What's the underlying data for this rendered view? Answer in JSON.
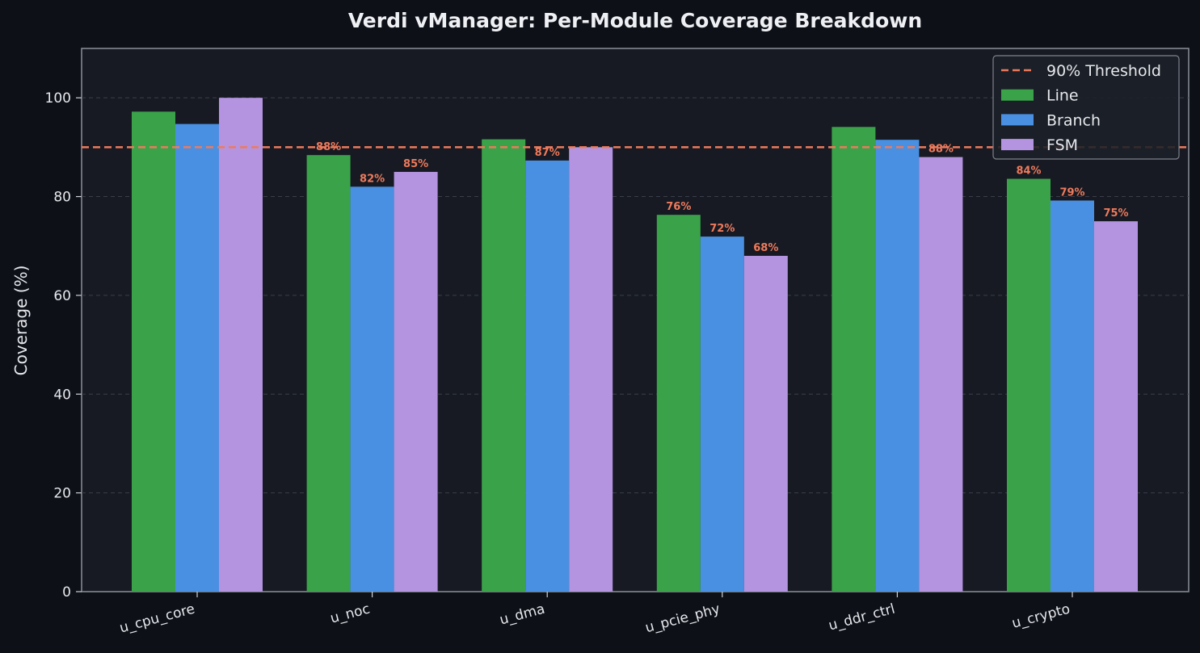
{
  "chart_data": {
    "type": "bar",
    "title": "Verdi vManager: Per-Module Coverage Breakdown",
    "xlabel": "",
    "ylabel": "Coverage (%)",
    "ylim": [
      0,
      110
    ],
    "yticks": [
      0,
      20,
      40,
      60,
      80,
      100
    ],
    "ytick_labels": [
      "0",
      "20",
      "40",
      "60",
      "80",
      "100"
    ],
    "grid": "horizontal, dashed",
    "legend_position": "top-right",
    "categories": [
      "u_cpu_core",
      "u_noc",
      "u_dma",
      "u_pcie_phy",
      "u_ddr_ctrl",
      "u_crypto"
    ],
    "series": [
      {
        "name": "Line",
        "color": "#3aa34a",
        "values": [
          97.2,
          88.4,
          91.6,
          76.3,
          94.1,
          83.6
        ]
      },
      {
        "name": "Branch",
        "color": "#4a90e2",
        "values": [
          94.7,
          82.0,
          87.3,
          71.9,
          91.5,
          79.2
        ]
      },
      {
        "name": "FSM",
        "color": "#b494e0",
        "values": [
          100.0,
          85.0,
          90.0,
          68.0,
          88.0,
          75.0
        ]
      }
    ],
    "threshold": {
      "label": "90% Threshold",
      "value": 90,
      "color": "#ee7a5c"
    },
    "data_labels": [
      {
        "category": 1,
        "series": 0,
        "text": "88%"
      },
      {
        "category": 1,
        "series": 1,
        "text": "82%"
      },
      {
        "category": 1,
        "series": 2,
        "text": "85%"
      },
      {
        "category": 2,
        "series": 1,
        "text": "87%"
      },
      {
        "category": 3,
        "series": 0,
        "text": "76%"
      },
      {
        "category": 3,
        "series": 1,
        "text": "72%"
      },
      {
        "category": 3,
        "series": 2,
        "text": "68%"
      },
      {
        "category": 4,
        "series": 2,
        "text": "88%"
      },
      {
        "category": 5,
        "series": 0,
        "text": "84%"
      },
      {
        "category": 5,
        "series": 1,
        "text": "79%"
      },
      {
        "category": 5,
        "series": 2,
        "text": "75%"
      }
    ],
    "data_label_color": "#ee7a5c"
  }
}
